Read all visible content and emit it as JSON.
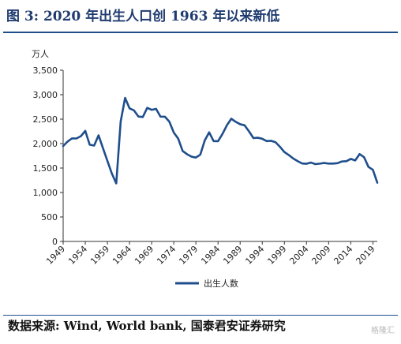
{
  "header": {
    "title": "图 3:  2020 年出生人口创 1963 年以来新低"
  },
  "footer": {
    "source": "数据来源: Wind, World bank, 国泰君安证券研究",
    "watermark": "格隆汇"
  },
  "chart_data": {
    "type": "line",
    "title": "图 3:  2020 年出生人口创 1963 年以来新低",
    "unit_label": "万人",
    "xlabel": "",
    "ylabel": "万人",
    "xlim": [
      1949,
      2020
    ],
    "ylim": [
      0,
      3500
    ],
    "y_ticks": [
      0,
      500,
      1000,
      1500,
      2000,
      2500,
      3000,
      3500
    ],
    "y_tick_labels": [
      "0",
      "500",
      "1,000",
      "1,500",
      "2,000",
      "2,500",
      "3,000",
      "3,500"
    ],
    "x_ticks": [
      1949,
      1954,
      1959,
      1964,
      1969,
      1974,
      1979,
      1984,
      1989,
      1994,
      1999,
      2004,
      2009,
      2014,
      2019
    ],
    "grid": false,
    "legend_position": "bottom",
    "series_color": "#1f4e8c",
    "series": [
      {
        "name": "出生人数",
        "x": [
          1949,
          1950,
          1951,
          1952,
          1953,
          1954,
          1955,
          1956,
          1957,
          1958,
          1959,
          1960,
          1961,
          1962,
          1963,
          1964,
          1965,
          1966,
          1967,
          1968,
          1969,
          1970,
          1971,
          1972,
          1973,
          1974,
          1975,
          1976,
          1977,
          1978,
          1979,
          1980,
          1981,
          1982,
          1983,
          1984,
          1985,
          1986,
          1987,
          1988,
          1989,
          1990,
          1991,
          1992,
          1993,
          1994,
          1995,
          1996,
          1997,
          1998,
          1999,
          2000,
          2001,
          2002,
          2003,
          2004,
          2005,
          2006,
          2007,
          2008,
          2009,
          2010,
          2011,
          2012,
          2013,
          2014,
          2015,
          2016,
          2017,
          2018,
          2019,
          2020
        ],
        "values": [
          1950,
          2042,
          2107,
          2105,
          2151,
          2260,
          1978,
          1960,
          2169,
          1906,
          1647,
          1389,
          1187,
          2451,
          2934,
          2721,
          2679,
          2554,
          2543,
          2731,
          2690,
          2710,
          2551,
          2550,
          2447,
          2226,
          2102,
          1849,
          1783,
          1733,
          1715,
          1776,
          2064,
          2230,
          2052,
          2050,
          2196,
          2374,
          2508,
          2445,
          2396,
          2374,
          2250,
          2113,
          2120,
          2098,
          2052,
          2057,
          2028,
          1934,
          1827,
          1765,
          1696,
          1641,
          1594,
          1588,
          1612,
          1581,
          1591,
          1604,
          1591,
          1592,
          1600,
          1635,
          1640,
          1687,
          1655,
          1786,
          1723,
          1523,
          1465,
          1200
        ]
      }
    ]
  }
}
